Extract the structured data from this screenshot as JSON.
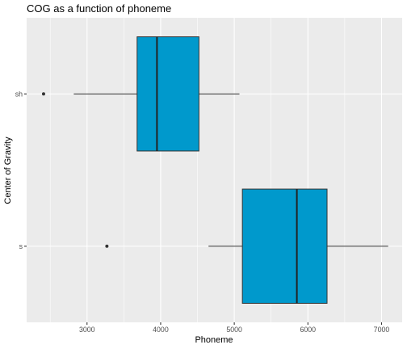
{
  "chart_data": {
    "type": "boxplot",
    "orientation": "horizontal",
    "title": "COG as a function of phoneme",
    "xlabel": "Phoneme",
    "ylabel": "Center of Gravity",
    "xlim": [
      2180,
      7280
    ],
    "x_ticks": [
      3000,
      4000,
      5000,
      6000,
      7000
    ],
    "x_tick_labels": [
      "3000",
      "4000",
      "5000",
      "6000",
      "7000"
    ],
    "categories": [
      "sh",
      "s"
    ],
    "grid": true,
    "fill_color": "#0099CC",
    "panel_background": "#EBEBEB",
    "boxes": [
      {
        "category": "sh",
        "whisker_low": 2820,
        "q1": 3680,
        "median": 3950,
        "q3": 4520,
        "whisker_high": 5070,
        "outliers": [
          2410
        ]
      },
      {
        "category": "s",
        "whisker_low": 4650,
        "q1": 5110,
        "median": 5850,
        "q3": 6260,
        "whisker_high": 7090,
        "outliers": [
          3270
        ]
      }
    ]
  }
}
